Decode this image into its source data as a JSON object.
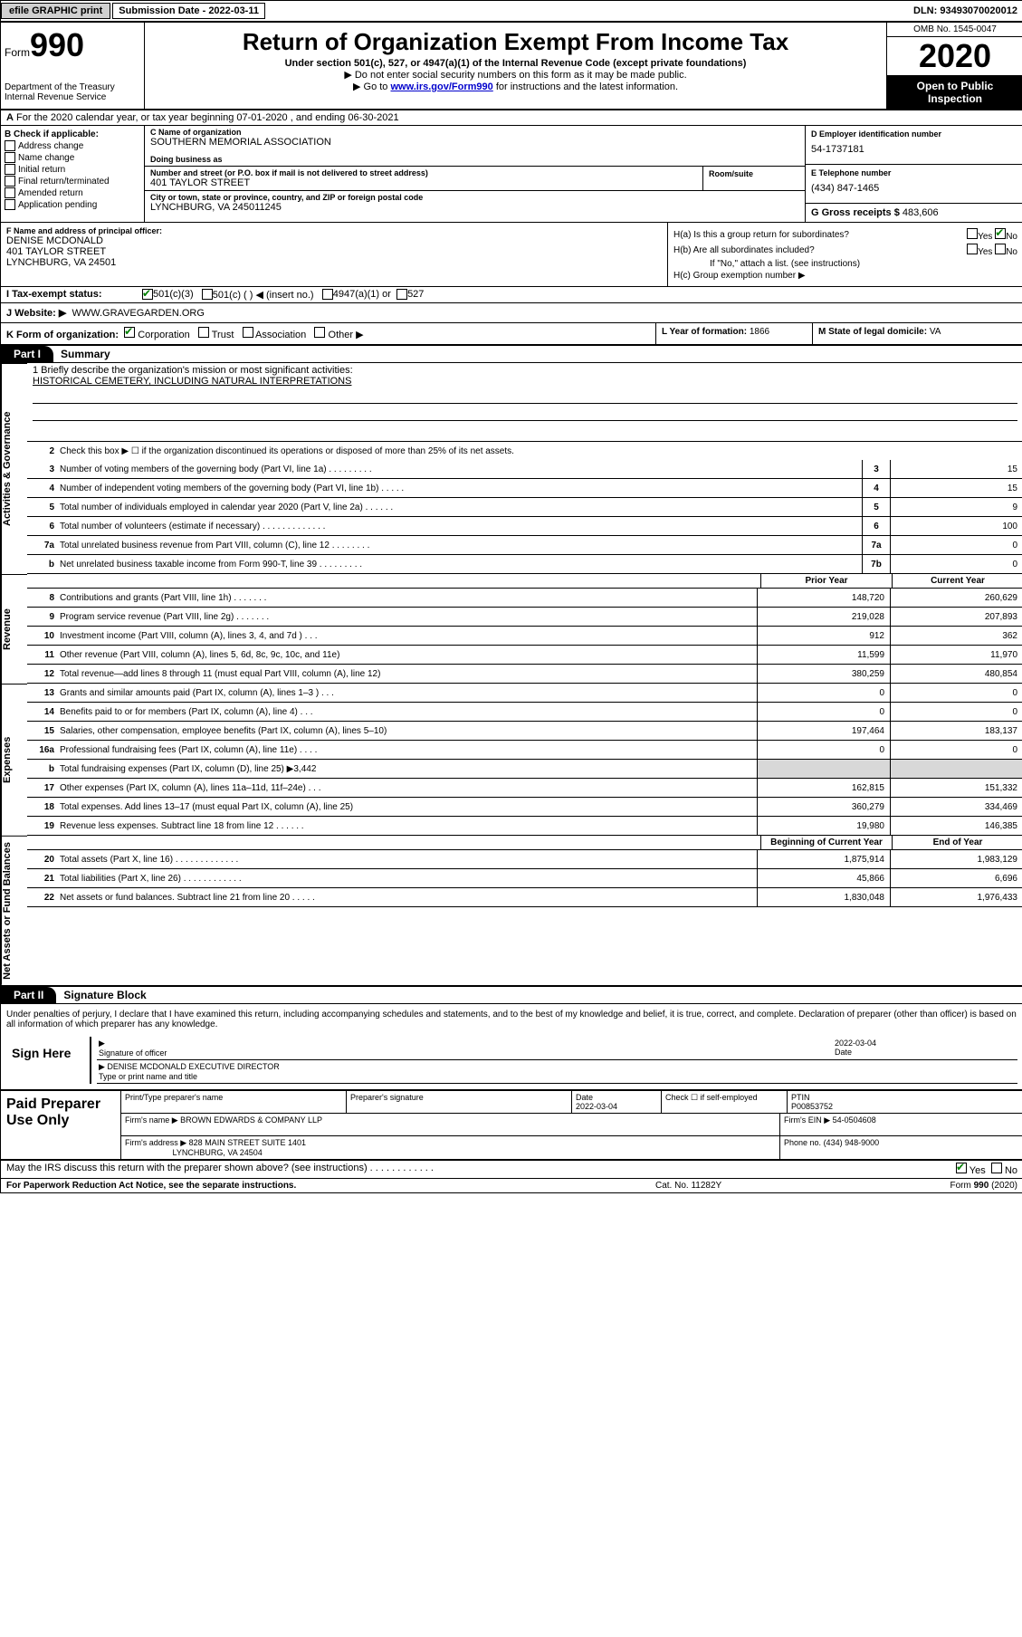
{
  "topbar": {
    "efile": "efile GRAPHIC print",
    "submission_label": "Submission Date - 2022-03-11",
    "dln_label": "DLN: 93493070020012"
  },
  "header": {
    "form_label": "Form",
    "form_number": "990",
    "dept": "Department of the Treasury\nInternal Revenue Service",
    "title": "Return of Organization Exempt From Income Tax",
    "subtitle": "Under section 501(c), 527, or 4947(a)(1) of the Internal Revenue Code (except private foundations)",
    "note1": "Do not enter social security numbers on this form as it may be made public.",
    "note2_pre": "Go to ",
    "note2_link": "www.irs.gov/Form990",
    "note2_post": " for instructions and the latest information.",
    "omb": "OMB No. 1545-0047",
    "year": "2020",
    "open_public": "Open to Public Inspection"
  },
  "row_a": {
    "text": "For the 2020 calendar year, or tax year beginning 07-01-2020    , and ending 06-30-2021"
  },
  "section_b": {
    "label": "B Check if applicable:",
    "items": [
      "Address change",
      "Name change",
      "Initial return",
      "Final return/terminated",
      "Amended return",
      "Application pending"
    ]
  },
  "section_c": {
    "name_label": "C Name of organization",
    "name": "SOUTHERN MEMORIAL ASSOCIATION",
    "dba_label": "Doing business as",
    "addr_label": "Number and street (or P.O. box if mail is not delivered to street address)",
    "addr": "401 TAYLOR STREET",
    "room_label": "Room/suite",
    "city_label": "City or town, state or province, country, and ZIP or foreign postal code",
    "city": "LYNCHBURG, VA  245011245"
  },
  "section_d": {
    "ein_label": "D Employer identification number",
    "ein": "54-1737181",
    "phone_label": "E Telephone number",
    "phone": "(434) 847-1465",
    "gross_label": "G Gross receipts $ ",
    "gross": "483,606"
  },
  "section_f": {
    "label": "F  Name and address of principal officer:",
    "name": "DENISE MCDONALD",
    "addr1": "401 TAYLOR STREET",
    "addr2": "LYNCHBURG, VA  24501"
  },
  "section_h": {
    "ha_label": "H(a)  Is this a group return for subordinates?",
    "hb_label": "H(b)  Are all subordinates included?",
    "hb_note": "If \"No,\" attach a list. (see instructions)",
    "hc_label": "H(c)  Group exemption number ▶",
    "yes": "Yes",
    "no": "No"
  },
  "row_i": {
    "label": "I    Tax-exempt status:",
    "opts": [
      "501(c)(3)",
      "501(c) (  ) ◀ (insert no.)",
      "4947(a)(1) or",
      "527"
    ]
  },
  "row_j": {
    "label": "J    Website: ▶",
    "value": "WWW.GRAVEGARDEN.ORG"
  },
  "row_k": {
    "label": "K Form of organization:",
    "opts": [
      "Corporation",
      "Trust",
      "Association",
      "Other ▶"
    ],
    "l_label": "L Year of formation: ",
    "l_val": "1866",
    "m_label": "M State of legal domicile: ",
    "m_val": "VA"
  },
  "parts": {
    "p1": "Part I",
    "p1_title": "Summary",
    "p2": "Part II",
    "p2_title": "Signature Block"
  },
  "vtabs": {
    "gov": "Activities & Governance",
    "rev": "Revenue",
    "exp": "Expenses",
    "net": "Net Assets or Fund Balances"
  },
  "mission": {
    "label": "1   Briefly describe the organization's mission or most significant activities:",
    "text": "HISTORICAL CEMETERY, INCLUDING NATURAL INTERPRETATIONS"
  },
  "gov_lines": [
    {
      "n": "2",
      "desc": "Check this box ▶ ☐  if the organization discontinued its operations or disposed of more than 25% of its net assets.",
      "box": "",
      "val": ""
    },
    {
      "n": "3",
      "desc": "Number of voting members of the governing body (Part VI, line 1a)   .    .    .    .    .    .    .    .    .",
      "box": "3",
      "val": "15"
    },
    {
      "n": "4",
      "desc": "Number of independent voting members of the governing body (Part VI, line 1b)   .    .    .    .    .",
      "box": "4",
      "val": "15"
    },
    {
      "n": "5",
      "desc": "Total number of individuals employed in calendar year 2020 (Part V, line 2a)   .    .    .    .    .    .",
      "box": "5",
      "val": "9"
    },
    {
      "n": "6",
      "desc": "Total number of volunteers (estimate if necessary)   .    .    .    .    .    .    .    .    .    .    .    .    .",
      "box": "6",
      "val": "100"
    },
    {
      "n": "7a",
      "desc": "Total unrelated business revenue from Part VIII, column (C), line 12   .    .    .    .    .    .    .    .",
      "box": "7a",
      "val": "0"
    },
    {
      "n": "b",
      "desc": "Net unrelated business taxable income from Form 990-T, line 39   .    .    .    .    .    .    .    .    .",
      "box": "7b",
      "val": "0"
    }
  ],
  "col_headers": {
    "prior": "Prior Year",
    "current": "Current Year",
    "begin": "Beginning of Current Year",
    "end": "End of Year"
  },
  "rev_lines": [
    {
      "n": "8",
      "desc": "Contributions and grants (Part VIII, line 1h)   .    .    .    .    .    .    .",
      "py": "148,720",
      "cy": "260,629"
    },
    {
      "n": "9",
      "desc": "Program service revenue (Part VIII, line 2g)   .    .    .    .    .    .    .",
      "py": "219,028",
      "cy": "207,893"
    },
    {
      "n": "10",
      "desc": "Investment income (Part VIII, column (A), lines 3, 4, and 7d )   .    .    .",
      "py": "912",
      "cy": "362"
    },
    {
      "n": "11",
      "desc": "Other revenue (Part VIII, column (A), lines 5, 6d, 8c, 9c, 10c, and 11e)",
      "py": "11,599",
      "cy": "11,970"
    },
    {
      "n": "12",
      "desc": "Total revenue—add lines 8 through 11 (must equal Part VIII, column (A), line 12)",
      "py": "380,259",
      "cy": "480,854"
    }
  ],
  "exp_lines": [
    {
      "n": "13",
      "desc": "Grants and similar amounts paid (Part IX, column (A), lines 1–3 )   .    .    .",
      "py": "0",
      "cy": "0"
    },
    {
      "n": "14",
      "desc": "Benefits paid to or for members (Part IX, column (A), line 4)   .    .    .",
      "py": "0",
      "cy": "0"
    },
    {
      "n": "15",
      "desc": "Salaries, other compensation, employee benefits (Part IX, column (A), lines 5–10)",
      "py": "197,464",
      "cy": "183,137"
    },
    {
      "n": "16a",
      "desc": "Professional fundraising fees (Part IX, column (A), line 11e)   .    .    .    .",
      "py": "0",
      "cy": "0"
    },
    {
      "n": "b",
      "desc": "Total fundraising expenses (Part IX, column (D), line 25) ▶3,442",
      "py": "",
      "cy": "",
      "shaded": true
    },
    {
      "n": "17",
      "desc": "Other expenses (Part IX, column (A), lines 11a–11d, 11f–24e)   .    .    .",
      "py": "162,815",
      "cy": "151,332"
    },
    {
      "n": "18",
      "desc": "Total expenses. Add lines 13–17 (must equal Part IX, column (A), line 25)",
      "py": "360,279",
      "cy": "334,469"
    },
    {
      "n": "19",
      "desc": "Revenue less expenses. Subtract line 18 from line 12   .    .    .    .    .    .",
      "py": "19,980",
      "cy": "146,385"
    }
  ],
  "net_lines": [
    {
      "n": "20",
      "desc": "Total assets (Part X, line 16)   .    .    .    .    .    .    .    .    .    .    .    .    .",
      "py": "1,875,914",
      "cy": "1,983,129"
    },
    {
      "n": "21",
      "desc": "Total liabilities (Part X, line 26)   .    .    .    .    .    .    .    .    .    .    .    .",
      "py": "45,866",
      "cy": "6,696"
    },
    {
      "n": "22",
      "desc": "Net assets or fund balances. Subtract line 21 from line 20   .    .    .    .    .",
      "py": "1,830,048",
      "cy": "1,976,433"
    }
  ],
  "sig": {
    "perjury": "Under penalties of perjury, I declare that I have examined this return, including accompanying schedules and statements, and to the best of my knowledge and belief, it is true, correct, and complete. Declaration of preparer (other than officer) is based on all information of which preparer has any knowledge.",
    "sign_here": "Sign Here",
    "sig_officer": "Signature of officer",
    "date_label": "Date",
    "date": "2022-03-04",
    "officer_name": "DENISE MCDONALD  EXECUTIVE DIRECTOR",
    "type_label": "Type or print name and title"
  },
  "prep": {
    "label": "Paid Preparer Use Only",
    "print_name_label": "Print/Type preparer's name",
    "prep_sig_label": "Preparer's signature",
    "date_label": "Date",
    "date": "2022-03-04",
    "check_label": "Check ☐ if self-employed",
    "ptin_label": "PTIN",
    "ptin": "P00853752",
    "firm_name_label": "Firm's name    ▶",
    "firm_name": "BROWN EDWARDS & COMPANY LLP",
    "firm_ein_label": "Firm's EIN ▶",
    "firm_ein": "54-0504608",
    "firm_addr_label": "Firm's address ▶",
    "firm_addr1": "828 MAIN STREET SUITE 1401",
    "firm_addr2": "LYNCHBURG, VA  24504",
    "phone_label": "Phone no.",
    "phone": "(434) 948-9000"
  },
  "discuss": {
    "text": "May the IRS discuss this return with the preparer shown above? (see instructions)   .    .    .    .    .    .    .    .    .    .    .    .",
    "yes": "Yes",
    "no": "No"
  },
  "footer": {
    "left": "For Paperwork Reduction Act Notice, see the separate instructions.",
    "mid": "Cat. No. 11282Y",
    "right": "Form 990 (2020)"
  }
}
